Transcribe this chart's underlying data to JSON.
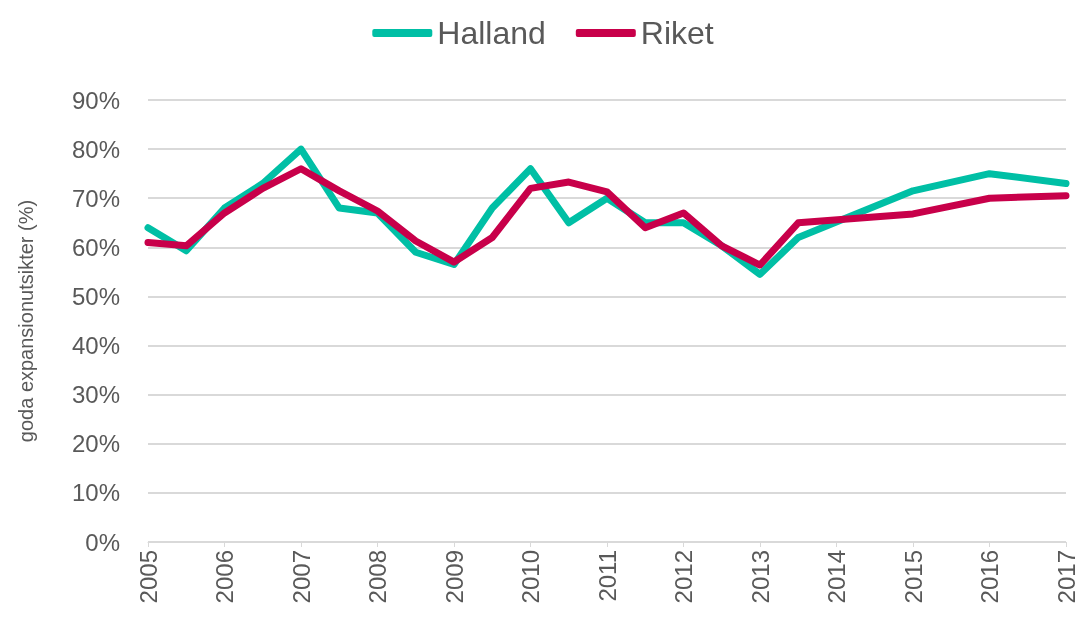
{
  "chart_data": {
    "type": "line",
    "ylabel": "goda expansionutsikter (%)",
    "legend": "top",
    "grid": "y",
    "marker": "none",
    "line_style": "solid",
    "xlim": [
      2005,
      2017
    ],
    "xticks": [
      2005,
      2006,
      2007,
      2008,
      2009,
      2010,
      2011,
      2012,
      2013,
      2014,
      2015,
      2016,
      2017
    ],
    "ylim": [
      0,
      90
    ],
    "yticks": [
      {
        "value": 0,
        "label": "0%"
      },
      {
        "value": 10,
        "label": "10%"
      },
      {
        "value": 20,
        "label": "20%"
      },
      {
        "value": 30,
        "label": "30%"
      },
      {
        "value": 40,
        "label": "40%"
      },
      {
        "value": 50,
        "label": "50%"
      },
      {
        "value": 60,
        "label": "60%"
      },
      {
        "value": 70,
        "label": "70%"
      },
      {
        "value": 80,
        "label": "80%"
      },
      {
        "value": 90,
        "label": "90%"
      }
    ],
    "x": [
      2005,
      2005.5,
      2006,
      2006.5,
      2007,
      2007.5,
      2008,
      2008.5,
      2009,
      2009.5,
      2010,
      2010.5,
      2011,
      2011.5,
      2012,
      2012.5,
      2013,
      2013.5,
      2015,
      2016,
      2017
    ],
    "series": [
      {
        "name": "Halland",
        "color": "#00bfa5",
        "values": [
          64,
          59.3,
          68,
          73,
          80,
          68,
          67,
          59,
          56.5,
          68,
          76,
          65,
          70,
          65,
          65,
          60.3,
          54.5,
          62,
          71.5,
          75,
          73
        ]
      },
      {
        "name": "Riket",
        "color": "#c8004a",
        "values": [
          61,
          60.3,
          67,
          72,
          76,
          71.5,
          67.4,
          61.3,
          57,
          62,
          72,
          73.3,
          71.3,
          64,
          67,
          60.3,
          56.4,
          65,
          66.8,
          70,
          70.5
        ]
      }
    ]
  }
}
